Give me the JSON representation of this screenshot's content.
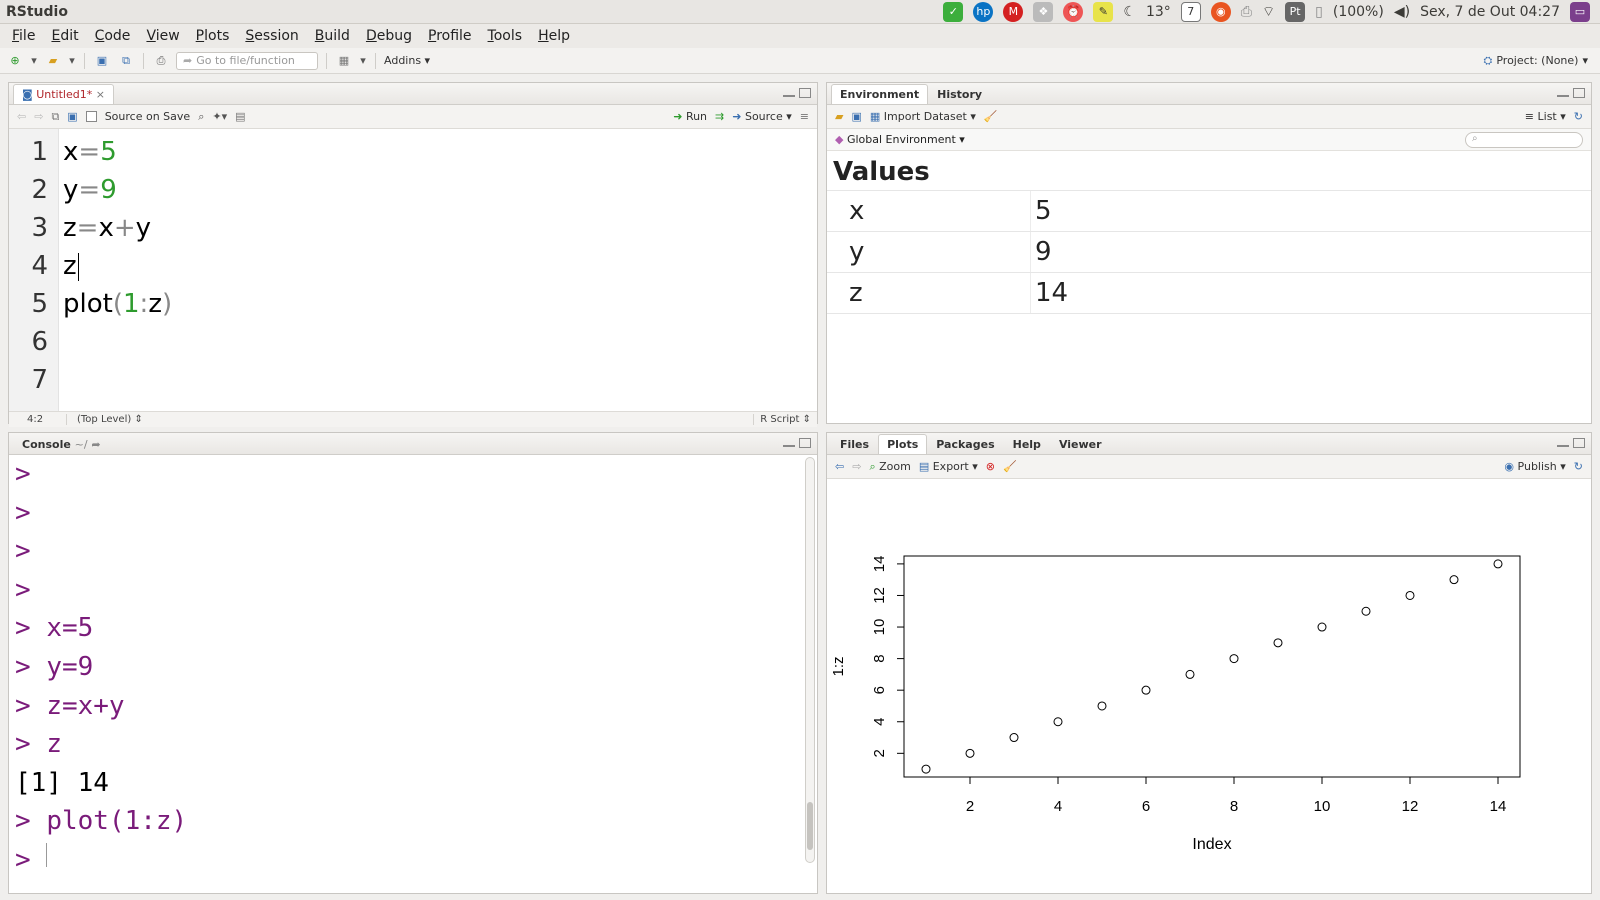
{
  "app": {
    "title": "RStudio"
  },
  "system_tray": {
    "weather": "13°",
    "calendar_day": "7",
    "keyboard_layout": "Pt",
    "battery": "(100%)",
    "datetime": "Sex, 7 de Out 04:27"
  },
  "menu": [
    "File",
    "Edit",
    "Code",
    "View",
    "Plots",
    "Session",
    "Build",
    "Debug",
    "Profile",
    "Tools",
    "Help"
  ],
  "toolbar": {
    "goto_placeholder": "Go to file/function",
    "addins_label": "Addins",
    "project_label": "Project: (None)"
  },
  "editor": {
    "tab_label": "Untitled1*",
    "source_on_save_label": "Source on Save",
    "run_label": "Run",
    "source_label": "Source",
    "line_numbers": [
      "1",
      "2",
      "3",
      "4",
      "5",
      "6",
      "7"
    ],
    "cursor_pos": "4:2",
    "scope": "(Top Level)",
    "file_type": "R Script"
  },
  "environment": {
    "tabs": [
      "Environment",
      "History"
    ],
    "import_label": "Import Dataset",
    "view_mode": "List",
    "scope_label": "Global Environment",
    "section_title": "Values",
    "rows": [
      {
        "name": "x",
        "value": "5"
      },
      {
        "name": "y",
        "value": "9"
      },
      {
        "name": "z",
        "value": "14"
      }
    ]
  },
  "console": {
    "tab_label": "Console",
    "path": "~/",
    "lines": [
      {
        "prompt": ">",
        "text": ""
      },
      {
        "prompt": ">",
        "text": ""
      },
      {
        "prompt": ">",
        "text": ""
      },
      {
        "prompt": ">",
        "text": ""
      },
      {
        "prompt": ">",
        "text": "x=5"
      },
      {
        "prompt": ">",
        "text": "y=9"
      },
      {
        "prompt": ">",
        "text": "z=x+y"
      },
      {
        "prompt": ">",
        "text": "z"
      },
      {
        "prompt": "",
        "text": "[1] 14"
      },
      {
        "prompt": ">",
        "text": "plot(1:z)"
      },
      {
        "prompt": ">",
        "text": ""
      }
    ]
  },
  "files_pane": {
    "tabs": [
      "Files",
      "Plots",
      "Packages",
      "Help",
      "Viewer"
    ],
    "zoom_label": "Zoom",
    "export_label": "Export",
    "publish_label": "Publish"
  },
  "chart_data": {
    "type": "scatter",
    "xlabel": "Index",
    "ylabel": "1:z",
    "x": [
      1,
      2,
      3,
      4,
      5,
      6,
      7,
      8,
      9,
      10,
      11,
      12,
      13,
      14
    ],
    "y": [
      1,
      2,
      3,
      4,
      5,
      6,
      7,
      8,
      9,
      10,
      11,
      12,
      13,
      14
    ],
    "xticks": [
      "2",
      "4",
      "6",
      "8",
      "10",
      "12",
      "14"
    ],
    "yticks": [
      "2",
      "4",
      "6",
      "8",
      "10",
      "12",
      "14"
    ],
    "xlim": [
      0.5,
      14.5
    ],
    "ylim": [
      0.5,
      14.5
    ]
  }
}
